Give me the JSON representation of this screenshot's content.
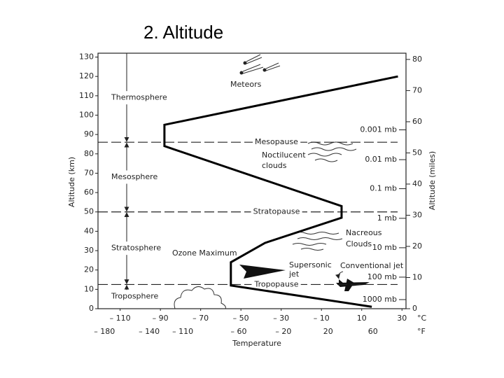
{
  "chart_data": {
    "type": "line",
    "title": "2. Altitude",
    "x_label": "Temperature",
    "y_label": "Altitude (km)",
    "y2_label": "Altitude (miles)",
    "x_unit": "°C",
    "x2_unit": "°F",
    "series": [
      {
        "x": [
          15,
          -55,
          -55,
          -38,
          0,
          0,
          -88,
          -88,
          28
        ],
        "values": [
          1,
          12,
          24,
          34,
          47,
          53,
          84,
          95,
          120
        ],
        "color": "#000000"
      }
    ],
    "xlim": [
      -121,
      32
    ],
    "xticks": [
      {
        "value": -110,
        "label": "– 110"
      },
      {
        "value": -90,
        "label": "– 90"
      },
      {
        "value": -70,
        "label": "– 70"
      },
      {
        "value": -50,
        "label": "– 50"
      },
      {
        "value": -30,
        "label": "– 30"
      },
      {
        "value": -10,
        "label": "– 10"
      },
      10,
      30
    ],
    "x2lim": [
      -185.8,
      89.6
    ],
    "x2ticks": [
      {
        "value": -180,
        "label": "– 180"
      },
      {
        "value": -140,
        "label": "– 140"
      },
      {
        "value": -110,
        "label": "– 110"
      },
      {
        "value": -60,
        "label": "– 60"
      },
      {
        "value": -20,
        "label": "– 20"
      },
      20,
      60
    ],
    "ylim": [
      0,
      132
    ],
    "yticks": [
      0,
      10,
      20,
      30,
      40,
      50,
      60,
      70,
      80,
      90,
      100,
      110,
      120,
      130
    ],
    "y2lim": [
      0,
      82
    ],
    "y2ticks": [
      0,
      10,
      20,
      30,
      40,
      50,
      60,
      70,
      80
    ],
    "boundaries": [
      {
        "label": "Mesopause",
        "value": 86
      },
      {
        "label": "Stratopause",
        "value": 50
      },
      {
        "label": "Tropopause",
        "value": 12.5
      }
    ],
    "layers": [
      "Thermosphere",
      "Mesosphere",
      "Stratosphere",
      "Troposphere"
    ],
    "pressure_levels": [
      {
        "label": "0.001 mb",
        "value": 92.4
      },
      {
        "label": "0.01 mb",
        "value": 77
      },
      {
        "label": "0.1 mb",
        "value": 62
      },
      {
        "label": "1 mb",
        "value": 46.7
      },
      {
        "label": "10 mb",
        "value": 31.5
      },
      {
        "label": "100 mb",
        "value": 16.3
      },
      {
        "label": "1000 mb",
        "value": 4.7
      }
    ],
    "annotations": {
      "meteors": "Meteors",
      "noctilucent": [
        "Noctilucent",
        "clouds"
      ],
      "nacreous": [
        "Nacreous",
        "Clouds"
      ],
      "ozone": "Ozone Maximum",
      "supersonic": [
        "Supersonic",
        "jet"
      ],
      "conventional": "Conventional jet"
    }
  }
}
